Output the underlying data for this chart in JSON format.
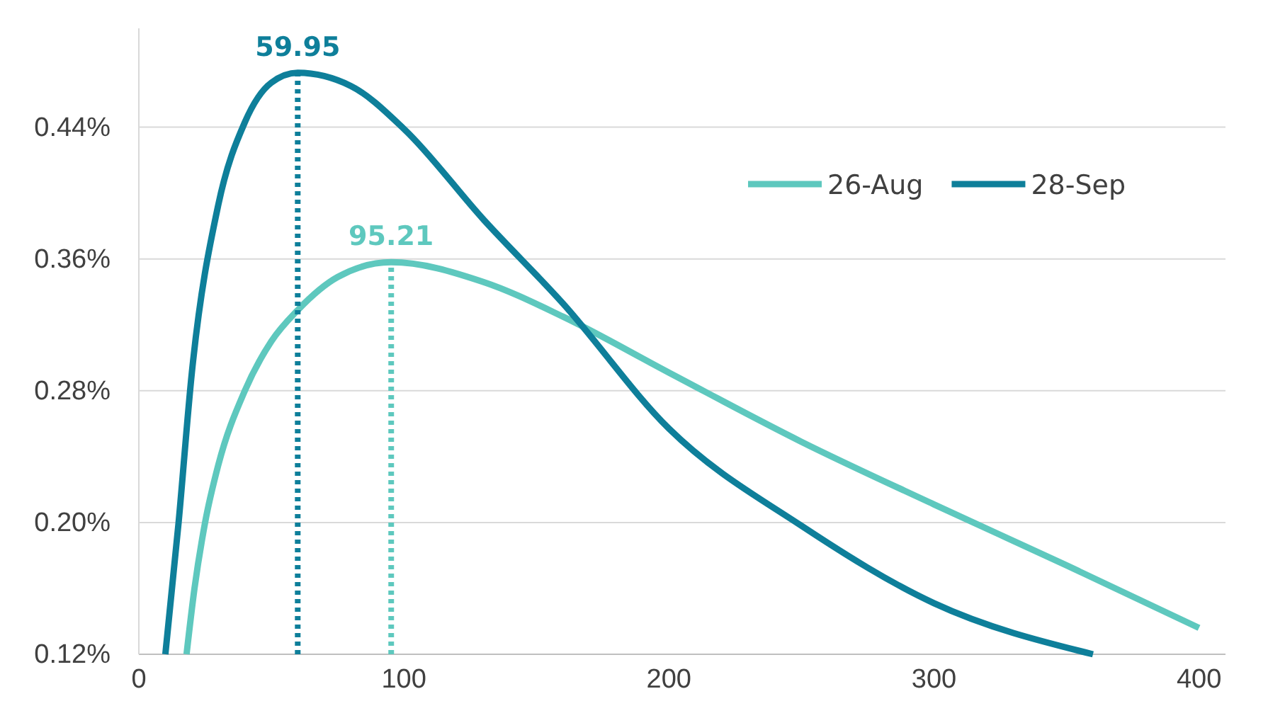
{
  "chart_data": {
    "type": "line",
    "xlim": [
      0,
      410
    ],
    "xticks": [
      0,
      100,
      200,
      300,
      400
    ],
    "ylim": [
      0.12,
      0.5
    ],
    "yticks": [
      {
        "value": 0.12,
        "label": "0.12%"
      },
      {
        "value": 0.2,
        "label": "0.20%"
      },
      {
        "value": 0.28,
        "label": "0.28%"
      },
      {
        "value": 0.36,
        "label": "0.36%"
      },
      {
        "value": 0.44,
        "label": "0.44%"
      }
    ],
    "grid": "y",
    "legend": "top right",
    "line_style": "solid",
    "series": [
      {
        "name": "26-Aug",
        "color": "#5ec8be",
        "x": [
          18,
          21,
          25,
          30,
          40,
          50,
          60,
          75,
          95.21,
          130,
          160,
          200,
          250,
          300,
          350,
          400
        ],
        "values": [
          0.12,
          0.16,
          0.2,
          0.235,
          0.28,
          0.31,
          0.329,
          0.349,
          0.358,
          0.346,
          0.325,
          0.291,
          0.249,
          0.211,
          0.174,
          0.136
        ]
      },
      {
        "name": "28-Sep",
        "color": "#0e7f9a",
        "x": [
          10,
          15,
          20,
          30,
          40,
          50,
          59.95,
          80,
          100,
          130,
          160,
          200,
          250,
          300,
          360
        ],
        "values": [
          0.12,
          0.2,
          0.291,
          0.393,
          0.443,
          0.467,
          0.473,
          0.465,
          0.439,
          0.384,
          0.333,
          0.257,
          0.198,
          0.151,
          0.12
        ]
      },
      {
        "color": "#0e7f9a",
        "line_style": "dotted",
        "x": [
          59.95,
          59.95
        ],
        "values": [
          0.12,
          0.473
        ]
      },
      {
        "color": "#5ec8be",
        "line_style": "dotted",
        "x": [
          95.21,
          95.21
        ],
        "values": [
          0.12,
          0.358
        ]
      }
    ],
    "annotations": [
      {
        "text": "59.95",
        "x": 59.95,
        "y": 0.473
      },
      {
        "text": "95.21",
        "x": 95.21,
        "y": 0.358
      }
    ]
  }
}
